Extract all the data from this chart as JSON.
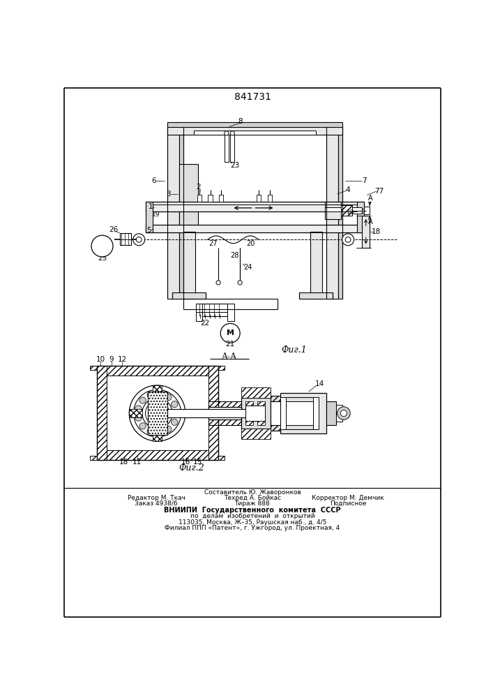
{
  "patent_number": "841731",
  "fig1_label": "Фиг.1",
  "fig2_label": "Фиг.2",
  "section_label": "A-A",
  "footer_line0": "Составитель Ю. Жаворонков",
  "footer_col1_line1": "Редактор М. Ткач",
  "footer_col2_line1": "Техред А. Бойкас",
  "footer_col3_line1": "Корректор М. Демчик",
  "footer_col1_line2": "Заказ 4938/6",
  "footer_col2_line2": "Тираж 888",
  "footer_col3_line2": "Подписное",
  "footer_line3": "ВНИИПИ  Государственного  комитета  СССР",
  "footer_line4": "по  делам  изобретений  и  открытий",
  "footer_line5": "113035, Москва, Ж–35, Раушская наб., д. 4/5",
  "footer_line6": "Филиал ППП «Патент», г. Ужгород, ул. Проектная, 4",
  "bg_color": "#ffffff",
  "lc": "#000000"
}
